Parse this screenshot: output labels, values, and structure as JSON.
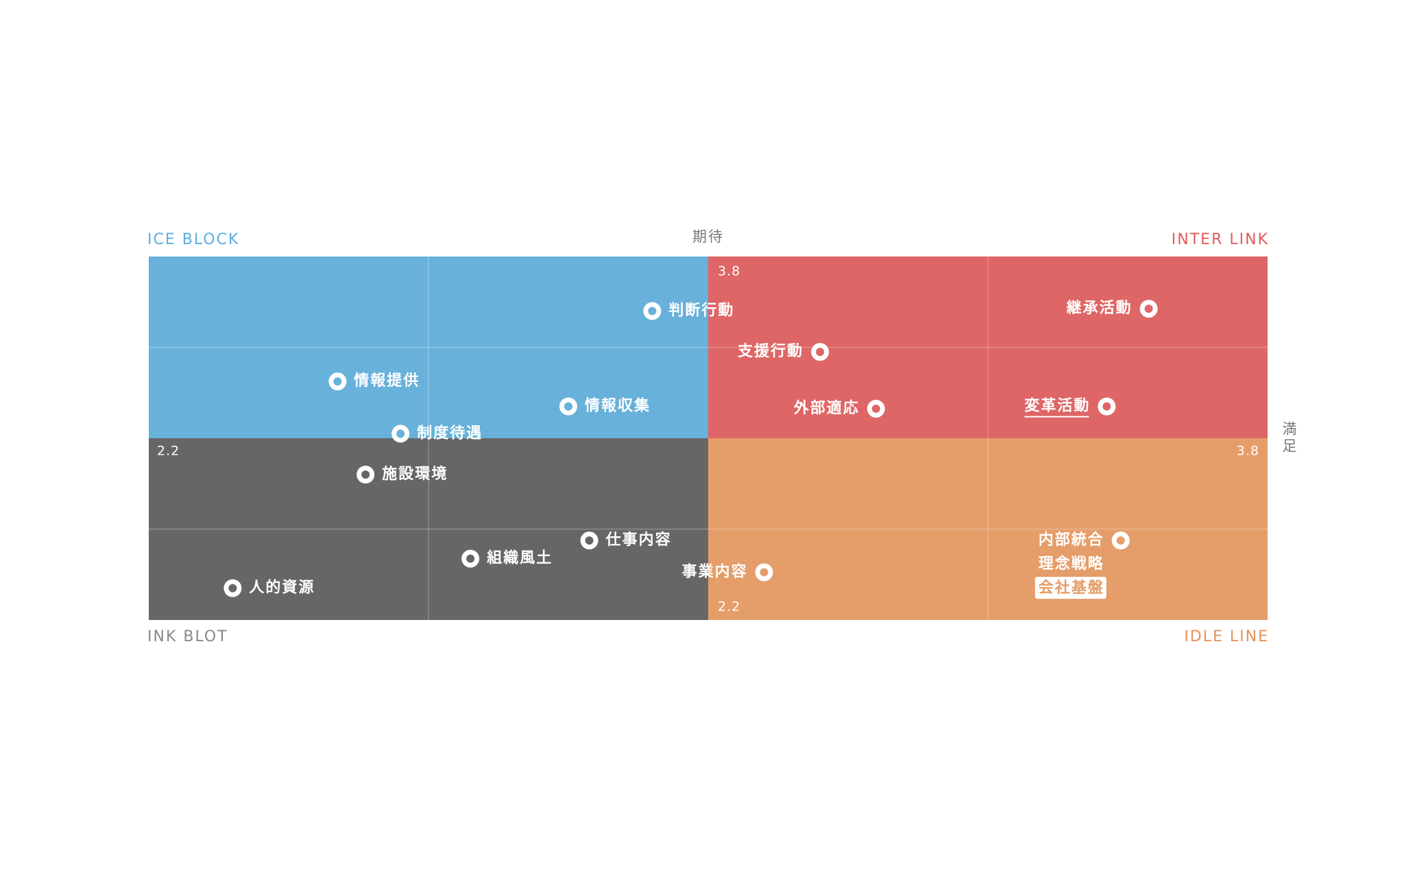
{
  "chart_data": {
    "type": "quadrant-scatter",
    "xlabel": "満足",
    "ylabel": "期待",
    "xlim": [
      2.2,
      3.8
    ],
    "ylim": [
      2.2,
      3.8
    ],
    "xticks": [
      2.2,
      3.8
    ],
    "yticks": [
      2.2,
      3.8
    ],
    "xgrid": [
      2.6,
      3.4
    ],
    "ygrid": [
      2.6,
      3.4
    ],
    "center": [
      3.0,
      3.0
    ],
    "quadrants": [
      {
        "name": "ICE BLOCK",
        "corner": "top-left",
        "color": "#68b1da",
        "label_color": "#5aaee0"
      },
      {
        "name": "INTER LINK",
        "corner": "top-right",
        "color": "#de6666",
        "label_color": "#e05c5c"
      },
      {
        "name": "INK BLOT",
        "corner": "bottom-left",
        "color": "#666666",
        "label_color": "#888888"
      },
      {
        "name": "IDLE LINE",
        "corner": "bottom-right",
        "color": "#e59d69",
        "label_color": "#e8915a"
      }
    ],
    "points": [
      {
        "label": "判断行動",
        "x": 2.92,
        "y": 3.56
      },
      {
        "label": "継承活動",
        "x": 3.63,
        "y": 3.57
      },
      {
        "label": "支援行動",
        "x": 3.16,
        "y": 3.38
      },
      {
        "label": "情報提供",
        "x": 2.47,
        "y": 3.25
      },
      {
        "label": "情報収集",
        "x": 2.8,
        "y": 3.14
      },
      {
        "label": "外部適応",
        "x": 3.24,
        "y": 3.13
      },
      {
        "label": "変革活動",
        "x": 3.57,
        "y": 3.14,
        "emphasis": "underline"
      },
      {
        "label": "制度待遇",
        "x": 2.56,
        "y": 3.02
      },
      {
        "label": "施設環境",
        "x": 2.51,
        "y": 2.84
      },
      {
        "label": "仕事内容",
        "x": 2.83,
        "y": 2.55
      },
      {
        "label": "組織風土",
        "x": 2.66,
        "y": 2.47
      },
      {
        "label": "事業内容",
        "x": 3.08,
        "y": 2.41
      },
      {
        "label": "人的資源",
        "x": 2.32,
        "y": 2.34
      },
      {
        "label": "内部統合",
        "x": 3.59,
        "y": 2.55
      },
      {
        "label": "理念戦略",
        "x": 3.59,
        "y": 2.55
      },
      {
        "label": "会社基盤",
        "x": 3.59,
        "y": 2.55,
        "emphasis": "box"
      }
    ]
  }
}
